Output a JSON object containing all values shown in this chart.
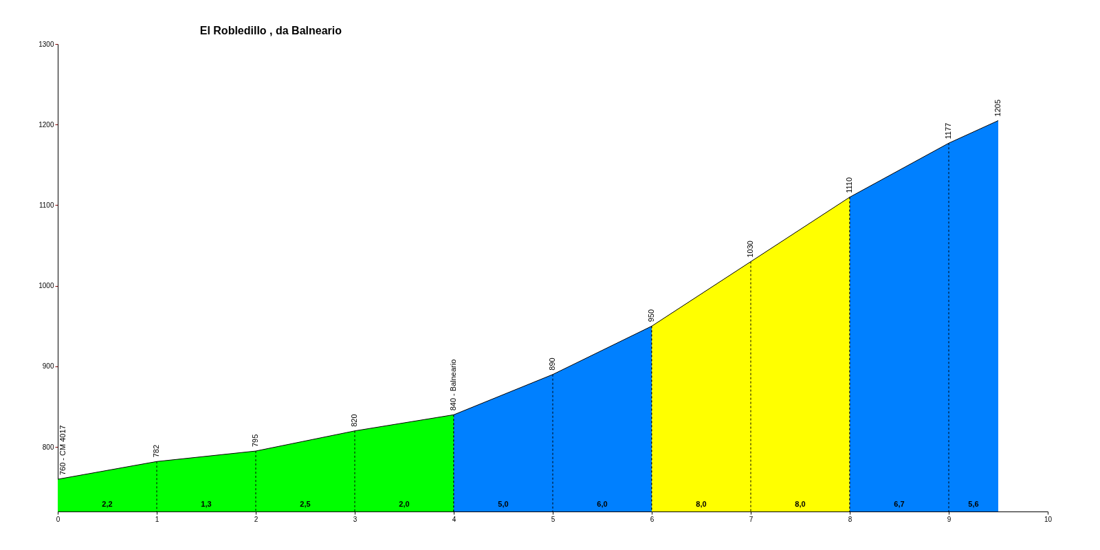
{
  "chart_data": {
    "type": "area",
    "title": "El Robledillo , da Balneario",
    "series": [
      {
        "color": "#00ff00",
        "x": [
          0,
          1,
          2,
          3,
          4
        ],
        "values": [
          760,
          782,
          795,
          820,
          840
        ],
        "value_labels": [
          "760 - CM 4017",
          "782",
          "795",
          "820",
          "840 - Balneario"
        ]
      },
      {
        "color": "#0080ff",
        "x": [
          4,
          5,
          6
        ],
        "values": [
          840,
          890,
          950
        ],
        "value_labels": [
          null,
          "890",
          "950"
        ]
      },
      {
        "color": "#ffff00",
        "x": [
          6,
          7,
          8
        ],
        "values": [
          950,
          1030,
          1110
        ],
        "value_labels": [
          null,
          "1030",
          "1110"
        ]
      },
      {
        "color": "#0080ff",
        "x": [
          8,
          9,
          9.5
        ],
        "values": [
          1110,
          1177,
          1205
        ],
        "value_labels": [
          null,
          "1177",
          "1205"
        ]
      }
    ],
    "xlim": [
      0,
      10
    ],
    "xticks": [
      0,
      1,
      2,
      3,
      4,
      5,
      6,
      7,
      8,
      9,
      10
    ],
    "ylim": [
      720,
      1300
    ],
    "yticks": [
      800,
      900,
      1000,
      1100,
      1200,
      1300
    ],
    "grid": "x",
    "annotations": [
      {
        "text": "2,2",
        "x": 0.5,
        "y": 723
      },
      {
        "text": "1,3",
        "x": 1.5,
        "y": 723
      },
      {
        "text": "2,5",
        "x": 2.5,
        "y": 723
      },
      {
        "text": "2,0",
        "x": 3.5,
        "y": 723
      },
      {
        "text": "5,0",
        "x": 4.5,
        "y": 723
      },
      {
        "text": "6,0",
        "x": 5.5,
        "y": 723
      },
      {
        "text": "8,0",
        "x": 6.5,
        "y": 723
      },
      {
        "text": "8,0",
        "x": 7.5,
        "y": 723
      },
      {
        "text": "6,7",
        "x": 8.5,
        "y": 723
      },
      {
        "text": "5,6",
        "x": 9.25,
        "y": 723
      }
    ]
  }
}
